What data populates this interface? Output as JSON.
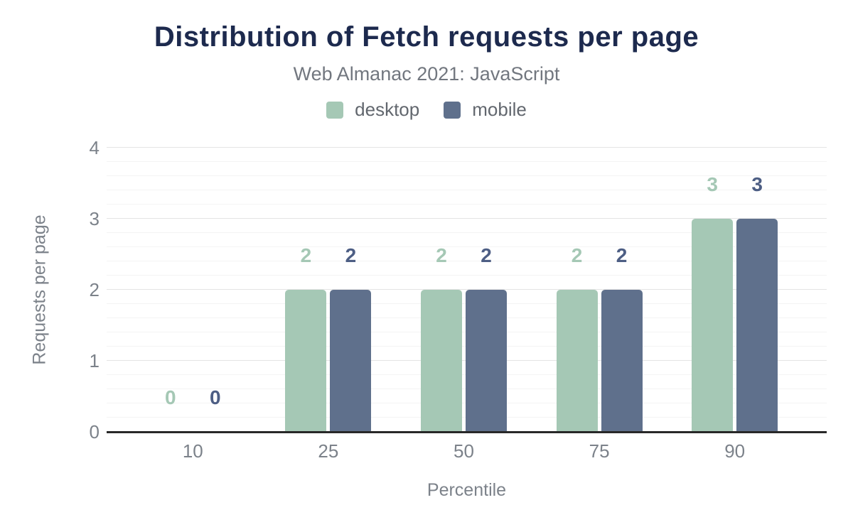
{
  "header": {
    "title": "Distribution of Fetch requests per page",
    "subtitle": "Web Almanac 2021: JavaScript"
  },
  "legend": [
    {
      "label": "desktop",
      "color": "#a5c8b5"
    },
    {
      "label": "mobile",
      "color": "#5f708c"
    }
  ],
  "chart_data": {
    "type": "bar",
    "title": "Distribution of Fetch requests per page",
    "subtitle": "Web Almanac 2021: JavaScript",
    "categories": [
      "10",
      "25",
      "50",
      "75",
      "90"
    ],
    "series": [
      {
        "name": "desktop",
        "color": "#a5c8b5",
        "label_color": "#a5c8b5",
        "values": [
          0,
          2,
          2,
          2,
          3
        ]
      },
      {
        "name": "mobile",
        "color": "#5f708c",
        "label_color": "#4d5e84",
        "values": [
          0,
          2,
          2,
          2,
          3
        ]
      }
    ],
    "xlabel": "Percentile",
    "ylabel": "Requests per page",
    "ylim": [
      0,
      4
    ],
    "yticks": [
      0,
      1,
      2,
      3,
      4
    ],
    "y_major_step": 1,
    "y_minor_step": 0.2,
    "grid": true,
    "legend_position": "top",
    "colors": {
      "title_text": "#1d2a4e",
      "subtitle_text": "#72777f",
      "tick_text": "#7c828a",
      "axis_line": "#282828",
      "gridline_major": "#e4e4e4",
      "gridline_minor": "#f4f4f4",
      "background": "#ffffff"
    }
  }
}
